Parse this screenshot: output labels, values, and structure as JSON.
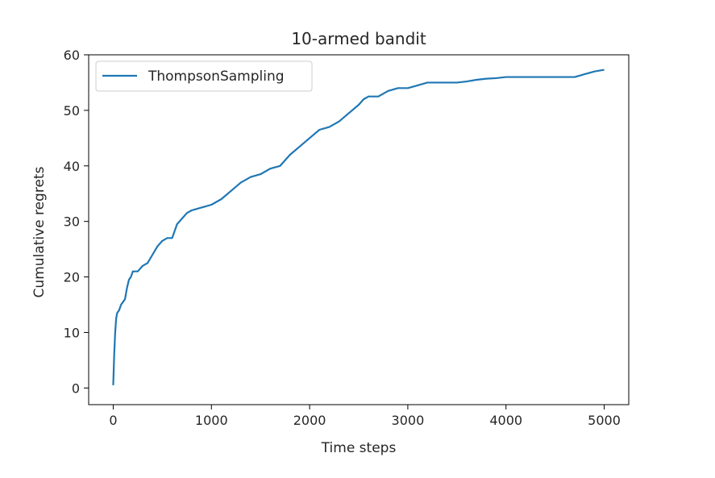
{
  "chart_data": {
    "type": "line",
    "title": "10-armed bandit",
    "xlabel": "Time steps",
    "ylabel": "Cumulative regrets",
    "xlim": [
      -250,
      5250
    ],
    "ylim": [
      -3,
      60
    ],
    "xticks": [
      0,
      1000,
      2000,
      3000,
      4000,
      5000
    ],
    "yticks": [
      0,
      10,
      20,
      30,
      40,
      50,
      60
    ],
    "grid": false,
    "legend_position": "top-left",
    "series": [
      {
        "name": "ThompsonSampling",
        "color": "#1f77b4",
        "x": [
          0,
          10,
          20,
          30,
          40,
          60,
          80,
          100,
          120,
          140,
          160,
          180,
          200,
          250,
          300,
          350,
          400,
          450,
          500,
          550,
          600,
          650,
          700,
          750,
          800,
          900,
          1000,
          1100,
          1200,
          1300,
          1400,
          1500,
          1600,
          1700,
          1800,
          1900,
          2000,
          2100,
          2200,
          2300,
          2400,
          2500,
          2550,
          2600,
          2700,
          2800,
          2900,
          3000,
          3100,
          3200,
          3300,
          3400,
          3500,
          3600,
          3700,
          3800,
          3900,
          4000,
          4100,
          4200,
          4300,
          4400,
          4500,
          4600,
          4700,
          4800,
          4900,
          5000
        ],
        "values": [
          0.5,
          6,
          10,
          12.5,
          13.5,
          14,
          15,
          15.5,
          16,
          18,
          19.5,
          20,
          21,
          21,
          22,
          22.5,
          24,
          25.5,
          26.5,
          27,
          27,
          29.5,
          30.5,
          31.5,
          32,
          32.5,
          33,
          34,
          35.5,
          37,
          38,
          38.5,
          39.5,
          40,
          42,
          43.5,
          45,
          46.5,
          47,
          48,
          49.5,
          51,
          52,
          52.5,
          52.5,
          53.5,
          54,
          54,
          54.5,
          55,
          55,
          55,
          55,
          55.2,
          55.5,
          55.7,
          55.8,
          56,
          56,
          56,
          56,
          56,
          56,
          56,
          56,
          56.5,
          57,
          57.3
        ]
      }
    ]
  }
}
